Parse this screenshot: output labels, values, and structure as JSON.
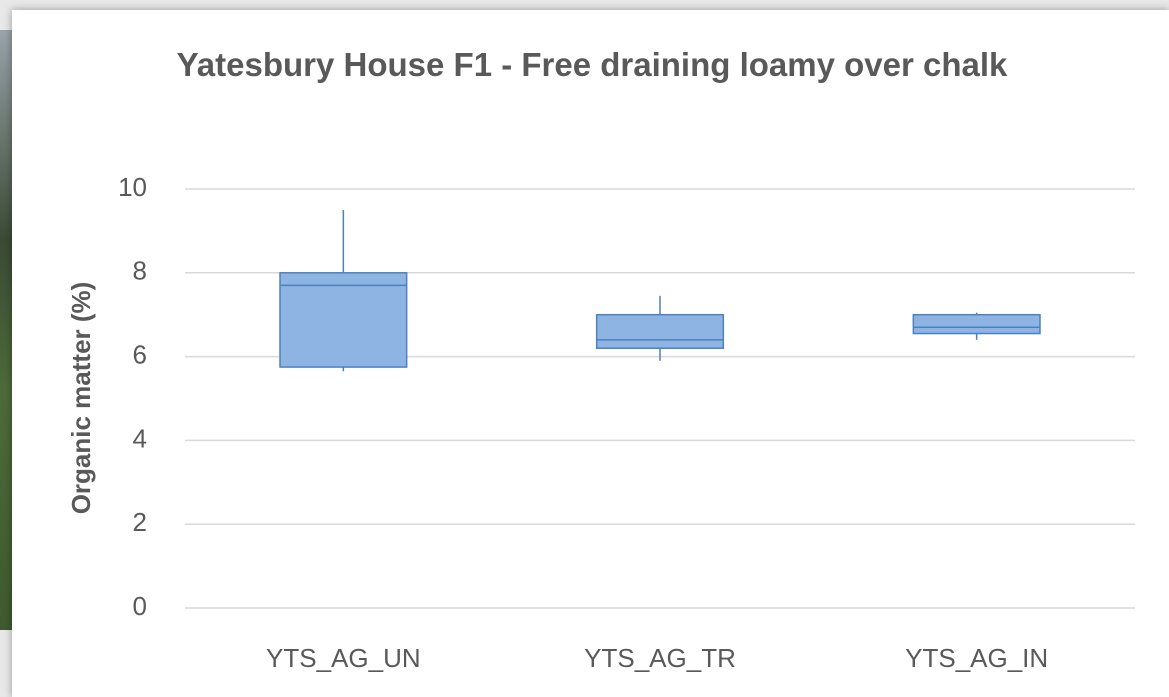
{
  "chart_data": {
    "type": "box",
    "title": "Yatesbury House F1 - Free draining loamy over chalk",
    "y_label": "Organic matter (%)",
    "categories": [
      "YTS_AG_UN",
      "YTS_AG_TR",
      "YTS_AG_IN"
    ],
    "boxes": [
      {
        "min": 5.65,
        "q1": 5.75,
        "median": 7.7,
        "q3": 8.0,
        "max": 9.5
      },
      {
        "min": 5.9,
        "q1": 6.2,
        "median": 6.4,
        "q3": 7.0,
        "max": 7.45
      },
      {
        "min": 6.4,
        "q1": 6.55,
        "median": 6.7,
        "q3": 7.0,
        "max": 7.05
      }
    ],
    "color": "#8db4e2",
    "edge_color": "#4f81bd",
    "ylim": [
      0,
      10
    ],
    "yticks": [
      0,
      2,
      4,
      6,
      8,
      10
    ],
    "grid": true
  }
}
